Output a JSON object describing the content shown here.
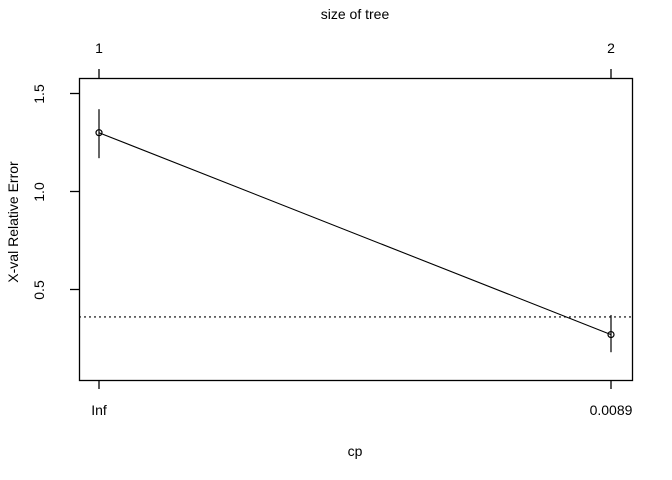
{
  "window": {
    "background_color": "#ffffff",
    "foreground_color": "#000000"
  },
  "chart_data": {
    "type": "line",
    "title": "size of tree",
    "xlabel": "cp",
    "ylabel": "X-val Relative Error",
    "grid": false,
    "legend": false,
    "ylim": [
      0.04,
      1.58
    ],
    "top_axis_ticks": [
      {
        "label": "1",
        "pos": 0
      },
      {
        "label": "2",
        "pos": 1
      }
    ],
    "bottom_axis_ticks": [
      {
        "label": "Inf",
        "pos": 0
      },
      {
        "label": "0.0089",
        "pos": 1
      }
    ],
    "y_axis_ticks": [
      {
        "label": "0.5",
        "value": 0.5
      },
      {
        "label": "1.0",
        "value": 1.0
      },
      {
        "label": "1.5",
        "value": 1.5
      }
    ],
    "series": [
      {
        "name": "xval-relative-error",
        "marker": "open-circle",
        "points": [
          {
            "cp_label": "Inf",
            "tree_size": 1,
            "pos": 0,
            "y": 1.3,
            "err_low": 1.17,
            "err_high": 1.42
          },
          {
            "cp_label": "0.0089",
            "tree_size": 2,
            "pos": 1,
            "y": 0.27,
            "err_low": 0.18,
            "err_high": 0.37
          }
        ]
      }
    ],
    "threshold_line": {
      "y": 0.36,
      "style": "dotted"
    }
  }
}
